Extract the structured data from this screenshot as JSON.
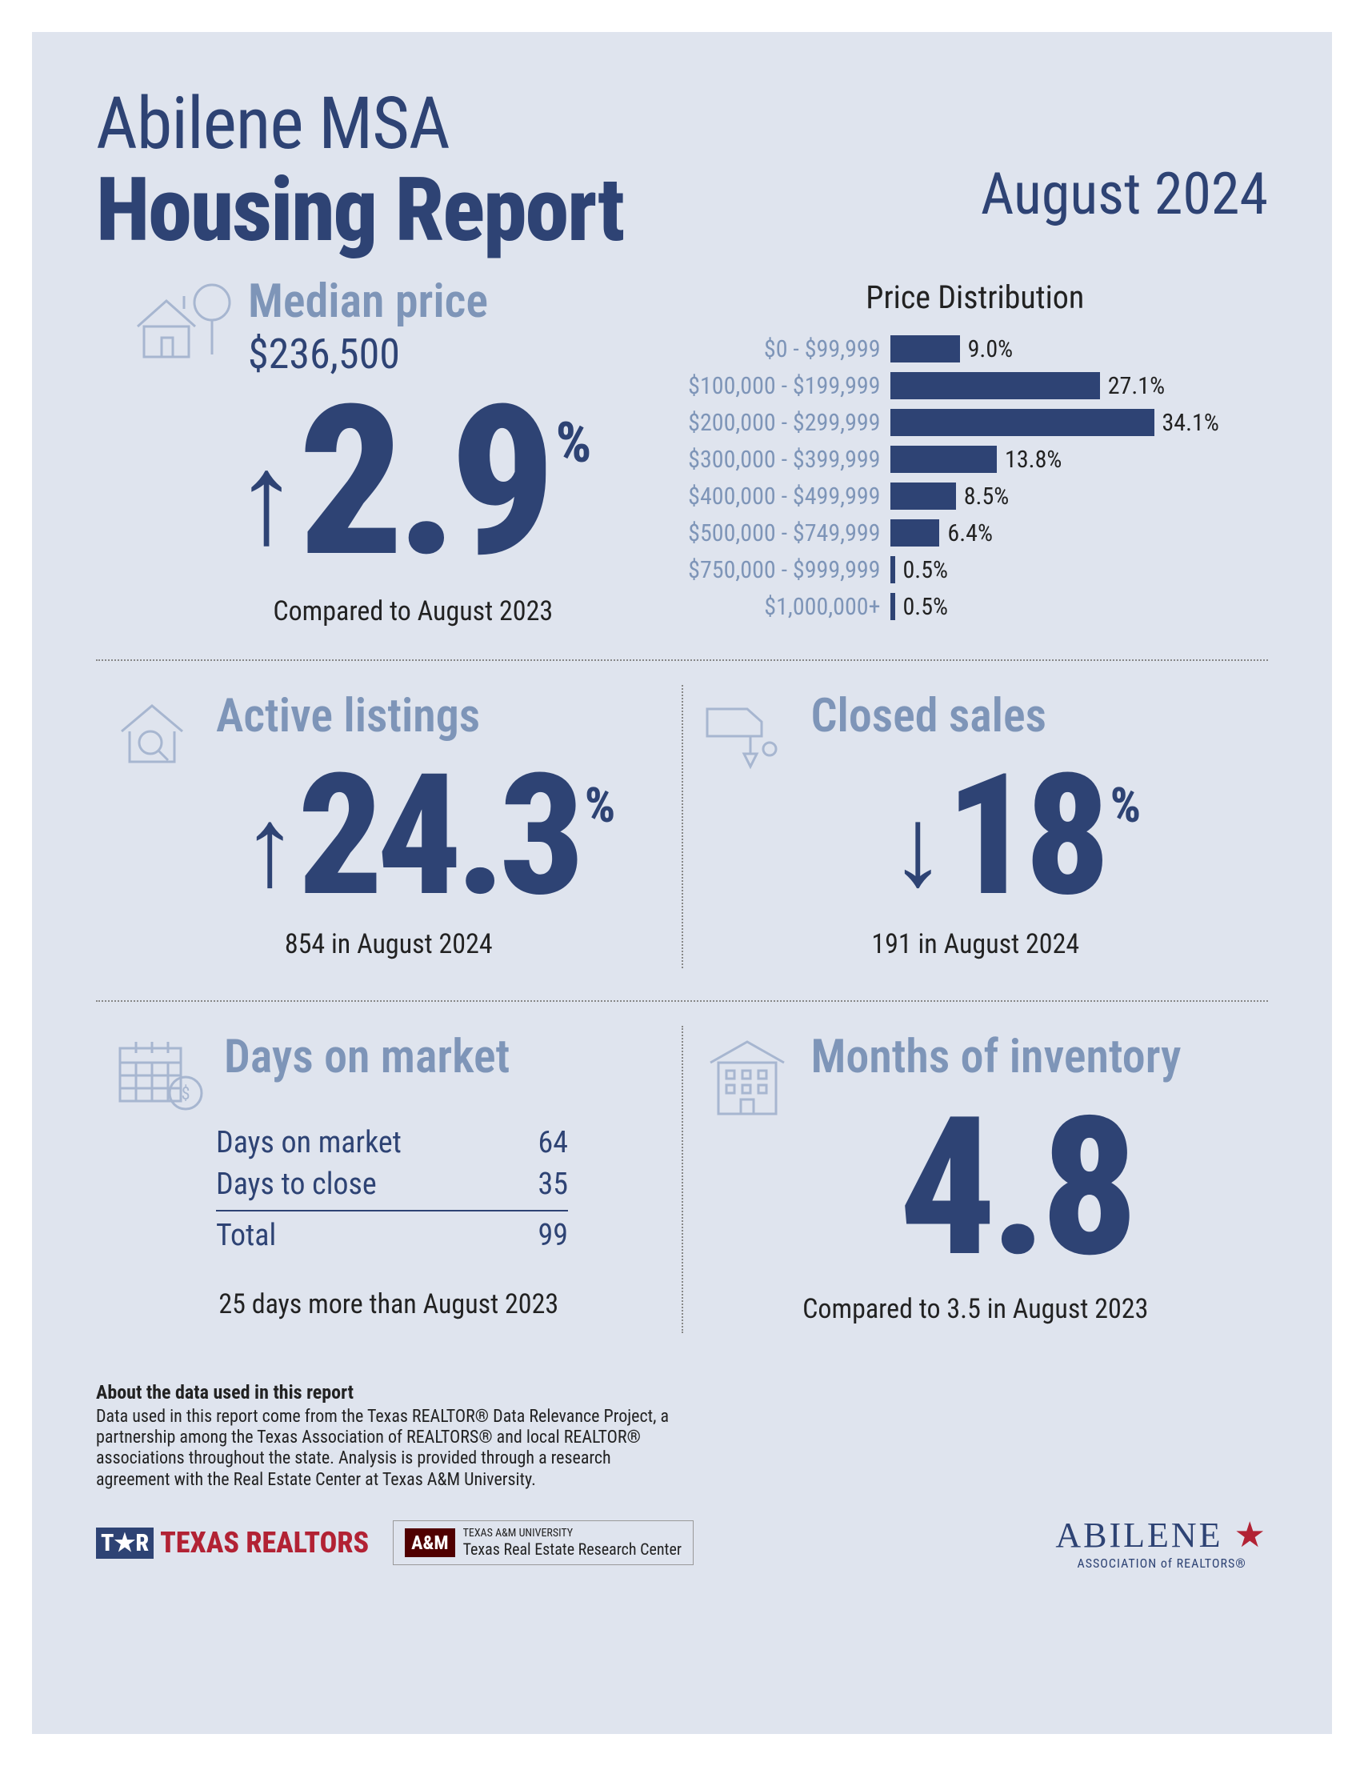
{
  "colors": {
    "bg": "#dfe4ee",
    "primary": "#2e4374",
    "muted": "#7e95b8",
    "icon": "#a7b6d0",
    "text": "#222222",
    "red": "#b22234",
    "maroon": "#500000"
  },
  "header": {
    "title_sub": "Abilene MSA",
    "title_main": "Housing Report",
    "date": "August 2024"
  },
  "median": {
    "label": "Median price",
    "value": "$236,500",
    "arrow": "↑",
    "pct": "2.9",
    "pct_sign": "%",
    "compare": "Compared to August 2023"
  },
  "distribution": {
    "title": "Price Distribution",
    "max_pct": 34.1,
    "rows": [
      {
        "label": "$0 - $99,999",
        "pct": 9.0,
        "disp": "9.0%"
      },
      {
        "label": "$100,000 - $199,999",
        "pct": 27.1,
        "disp": "27.1%"
      },
      {
        "label": "$200,000 - $299,999",
        "pct": 34.1,
        "disp": "34.1%"
      },
      {
        "label": "$300,000 - $399,999",
        "pct": 13.8,
        "disp": "13.8%"
      },
      {
        "label": "$400,000 - $499,999",
        "pct": 8.5,
        "disp": "8.5%"
      },
      {
        "label": "$500,000 - $749,999",
        "pct": 6.4,
        "disp": "6.4%"
      },
      {
        "label": "$750,000 - $999,999",
        "pct": 0.5,
        "disp": "0.5%"
      },
      {
        "label": "$1,000,000+",
        "pct": 0.5,
        "disp": "0.5%"
      }
    ]
  },
  "active": {
    "label": "Active listings",
    "arrow": "↑",
    "pct": "24.3",
    "pct_sign": "%",
    "sub": "854 in August 2024"
  },
  "closed": {
    "label": "Closed sales",
    "arrow": "↓",
    "pct": "18",
    "pct_sign": "%",
    "sub": "191 in August 2024"
  },
  "dom": {
    "label": "Days on market",
    "rows": [
      {
        "k": "Days on market",
        "v": "64"
      },
      {
        "k": "Days to close",
        "v": "35"
      }
    ],
    "total_k": "Total",
    "total_v": "99",
    "compare": "25 days more than August 2023"
  },
  "inventory": {
    "label": "Months of inventory",
    "value": "4.8",
    "compare": "Compared to 3.5 in August 2023"
  },
  "footer": {
    "about_title": "About the data used in this report",
    "about_text": "Data used in this report come from the Texas REALTOR® Data Relevance Project, a partnership among the Texas Association of REALTORS® and local REALTOR® associations throughout the state. Analysis is provided through a research agreement with the Real Estate Center at Texas A&M University.",
    "tr_logo": "TEXAS REALTORS",
    "tamu_top": "TEXAS A&M UNIVERSITY",
    "tamu_bottom": "Texas Real Estate Research Center",
    "abilene_name": "ABILENE",
    "abilene_sub": "ASSOCIATION of REALTORS®"
  }
}
